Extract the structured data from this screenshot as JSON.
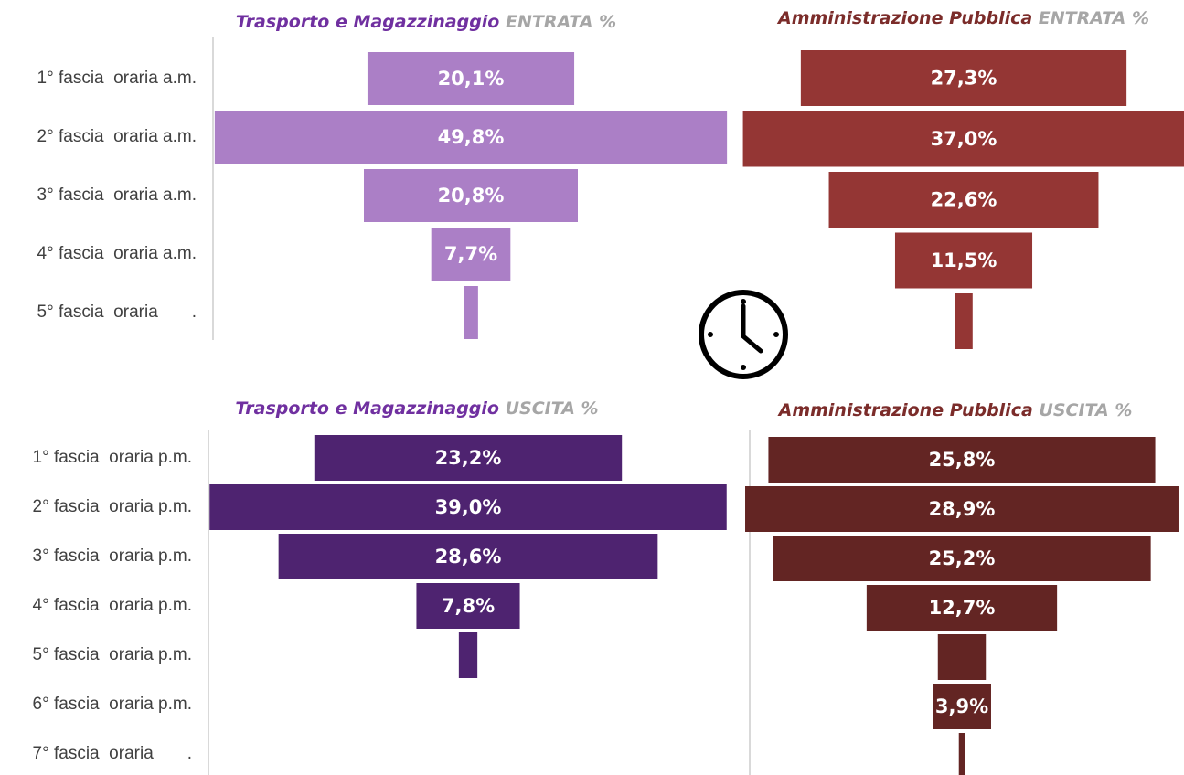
{
  "chart_data": [
    {
      "type": "funnel",
      "title": "Trasporto e Magazzinaggio",
      "subtitle": "ENTRATA %",
      "title_color": "#7030a0",
      "color": "#ab7fc6",
      "categories": [
        "1° fascia  oraria a.m.",
        "2° fascia  oraria a.m.",
        "3° fascia  oraria a.m.",
        "4° fascia  oraria a.m.",
        "5° fascia  oraria       ."
      ],
      "values": [
        20.1,
        49.8,
        20.8,
        7.7,
        1.4
      ],
      "value_labels": [
        "20,1%",
        "49,8%",
        "20,8%",
        "7,7%",
        null
      ]
    },
    {
      "type": "funnel",
      "title": "Amministrazione Pubblica",
      "subtitle": "ENTRATA %",
      "title_color": "#7b2c2a",
      "color": "#943634",
      "values": [
        27.3,
        37.0,
        22.6,
        11.5,
        1.5
      ],
      "value_labels": [
        "27,3%",
        "37,0%",
        "22,6%",
        "11,5%",
        null
      ]
    },
    {
      "type": "funnel",
      "title": "Trasporto e Magazzinaggio",
      "subtitle": "USCITA %",
      "title_color": "#7030a0",
      "color": "#4e2370",
      "categories": [
        "1° fascia  oraria p.m.",
        "2° fascia  oraria p.m.",
        "3° fascia  oraria p.m.",
        "4° fascia  oraria p.m.",
        "5° fascia  oraria p.m.",
        "6° fascia  oraria p.m.",
        "7° fascia  oraria       ."
      ],
      "values": [
        23.2,
        39.0,
        28.6,
        7.8,
        1.4,
        null,
        null
      ],
      "value_labels": [
        "23,2%",
        "39,0%",
        "28,6%",
        "7,8%",
        null,
        null,
        null
      ]
    },
    {
      "type": "funnel",
      "title": "Amministrazione Pubblica",
      "subtitle": "USCITA %",
      "title_color": "#7b2c2a",
      "color": "#632523",
      "values": [
        25.8,
        28.9,
        25.2,
        12.7,
        3.2,
        3.9,
        0.4
      ],
      "value_labels": [
        "25,8%",
        "28,9%",
        "25,2%",
        "12,7%",
        null,
        "3,9%",
        null
      ]
    }
  ]
}
